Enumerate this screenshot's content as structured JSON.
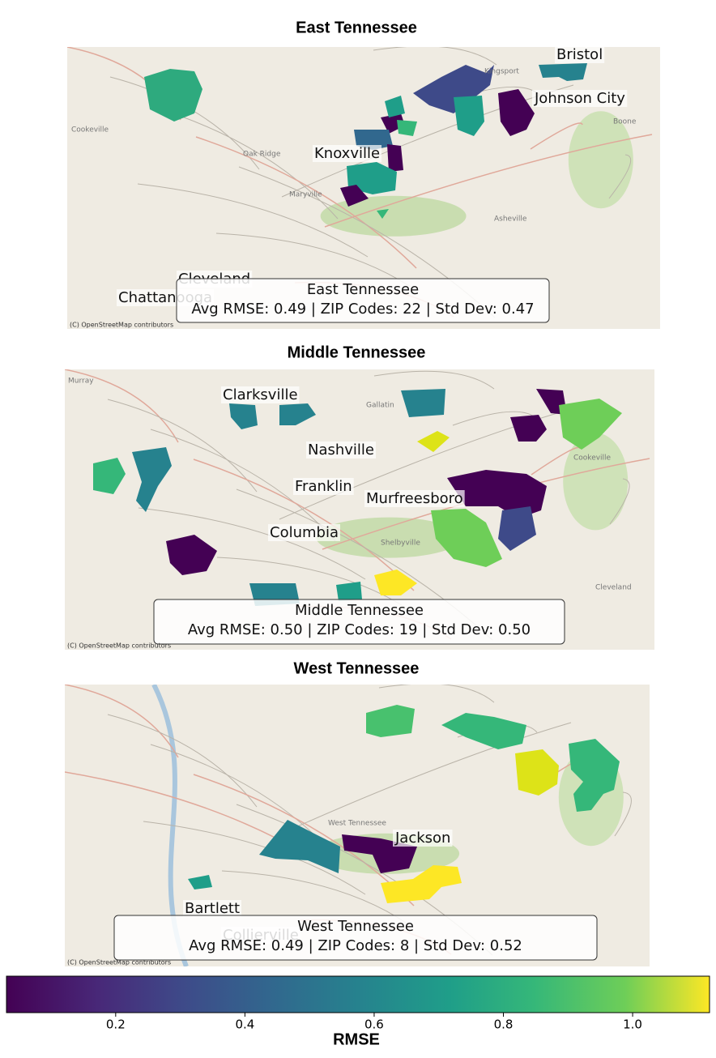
{
  "panels": [
    {
      "title": "East Tennessee",
      "city_labels": [
        "Bristol",
        "Johnson City",
        "Knoxville",
        "Cleveland",
        "Chattanooga"
      ],
      "basemap_labels": [
        "Kingsport",
        "Oak Ridge",
        "Maryville",
        "Asheville",
        "Boone",
        "Cookeville"
      ],
      "info_box": {
        "title": "East Tennessee",
        "stats": "Avg RMSE: 0.49 | ZIP Codes: 22 | Std Dev: 0.47"
      },
      "attribution": "(C) OpenStreetMap contributors"
    },
    {
      "title": "Middle Tennessee",
      "city_labels": [
        "Clarksville",
        "Nashville",
        "Franklin",
        "Murfreesboro",
        "Columbia"
      ],
      "basemap_labels": [
        "Murray",
        "Gallatin",
        "Cookeville",
        "Shelbyville",
        "Cleveland"
      ],
      "info_box": {
        "title": "Middle Tennessee",
        "stats": "Avg RMSE: 0.50 | ZIP Codes: 19 | Std Dev: 0.50"
      },
      "attribution": "(C) OpenStreetMap contributors"
    },
    {
      "title": "West Tennessee",
      "city_labels": [
        "Jackson",
        "Bartlett",
        "Collierville"
      ],
      "basemap_labels": [
        "West Tennessee"
      ],
      "info_box": {
        "title": "West Tennessee",
        "stats": "Avg RMSE: 0.49 | ZIP Codes: 8 | Std Dev: 0.52"
      },
      "attribution": "(C) OpenStreetMap contributors"
    }
  ],
  "colorbar": {
    "label": "RMSE",
    "lim": [
      0.031,
      1.119
    ],
    "ticks": [
      0.2,
      0.4,
      0.6,
      0.8,
      {
        "value": 1,
        "label": "1.0"
      }
    ]
  }
}
